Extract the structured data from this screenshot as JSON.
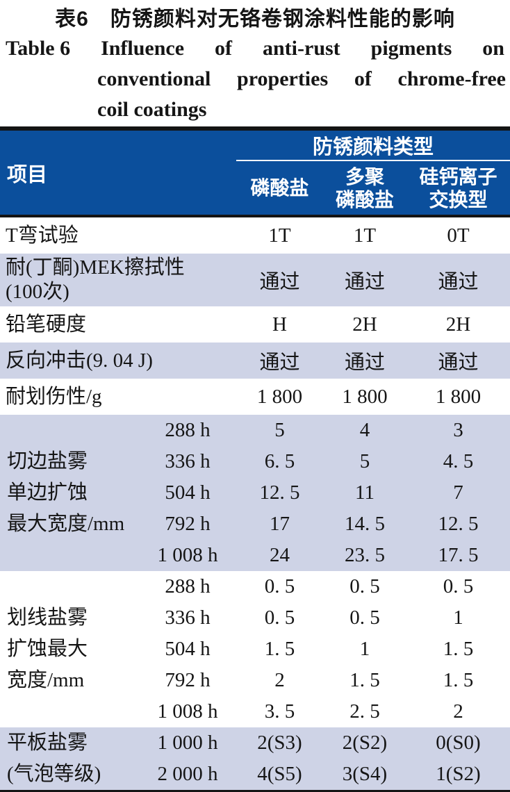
{
  "title": {
    "zh": "表6　防锈颜料对无铬卷钢涂料性能的影响",
    "en1": [
      "Table 6",
      "Influence",
      "of",
      "anti-rust",
      "pigments",
      "on"
    ],
    "en2": [
      "conventional",
      "properties",
      "of",
      "chrome-free"
    ],
    "en3": "coil coatings"
  },
  "colors": {
    "header_blue": "#0B4F9C",
    "band_blue": "#CED3E6",
    "rule_black": "#141414",
    "header_text": "#FFFFFF"
  },
  "table": {
    "header": {
      "item": "项目",
      "group": "防锈颜料类型",
      "cols": [
        "磷酸盐",
        "多聚\n磷酸盐",
        "硅钙离子\n交换型"
      ]
    },
    "rows": [
      {
        "label": "T弯试验",
        "values": [
          "1T",
          "1T",
          "0T"
        ]
      },
      {
        "label": "耐(丁酮)MEK擦拭性\n(100次)",
        "values": [
          "通过",
          "通过",
          "通过"
        ]
      },
      {
        "label": "铅笔硬度",
        "values": [
          "H",
          "2H",
          "2H"
        ]
      },
      {
        "label": "反向冲击(9. 04 J)",
        "values": [
          "通过",
          "通过",
          "通过"
        ]
      },
      {
        "label": "耐划伤性/g",
        "values": [
          "1 800",
          "1 800",
          "1 800"
        ]
      }
    ],
    "groups": [
      {
        "label": "切边盐雾\n单边扩蚀\n最大宽度/mm",
        "rows": [
          {
            "time": "288 h",
            "values": [
              "5",
              "4",
              "3"
            ]
          },
          {
            "time": "336 h",
            "values": [
              "6. 5",
              "5",
              "4. 5"
            ]
          },
          {
            "time": "504 h",
            "values": [
              "12. 5",
              "11",
              "7"
            ]
          },
          {
            "time": "792 h",
            "values": [
              "17",
              "14. 5",
              "12. 5"
            ]
          },
          {
            "time": "1 008 h",
            "values": [
              "24",
              "23. 5",
              "17. 5"
            ]
          }
        ]
      },
      {
        "label": "划线盐雾\n扩蚀最大\n宽度/mm",
        "rows": [
          {
            "time": "288 h",
            "values": [
              "0. 5",
              "0. 5",
              "0. 5"
            ]
          },
          {
            "time": "336 h",
            "values": [
              "0. 5",
              "0. 5",
              "1"
            ]
          },
          {
            "time": "504 h",
            "values": [
              "1. 5",
              "1",
              "1. 5"
            ]
          },
          {
            "time": "792 h",
            "values": [
              "2",
              "1. 5",
              "1. 5"
            ]
          },
          {
            "time": "1 008 h",
            "values": [
              "3. 5",
              "2. 5",
              "2"
            ]
          }
        ]
      },
      {
        "label": "平板盐雾\n(气泡等级)",
        "rows": [
          {
            "time": "1 000 h",
            "values": [
              "2(S3)",
              "2(S2)",
              "0(S0)"
            ]
          },
          {
            "time": "2 000 h",
            "values": [
              "4(S5)",
              "3(S4)",
              "1(S2)"
            ]
          }
        ]
      }
    ]
  }
}
